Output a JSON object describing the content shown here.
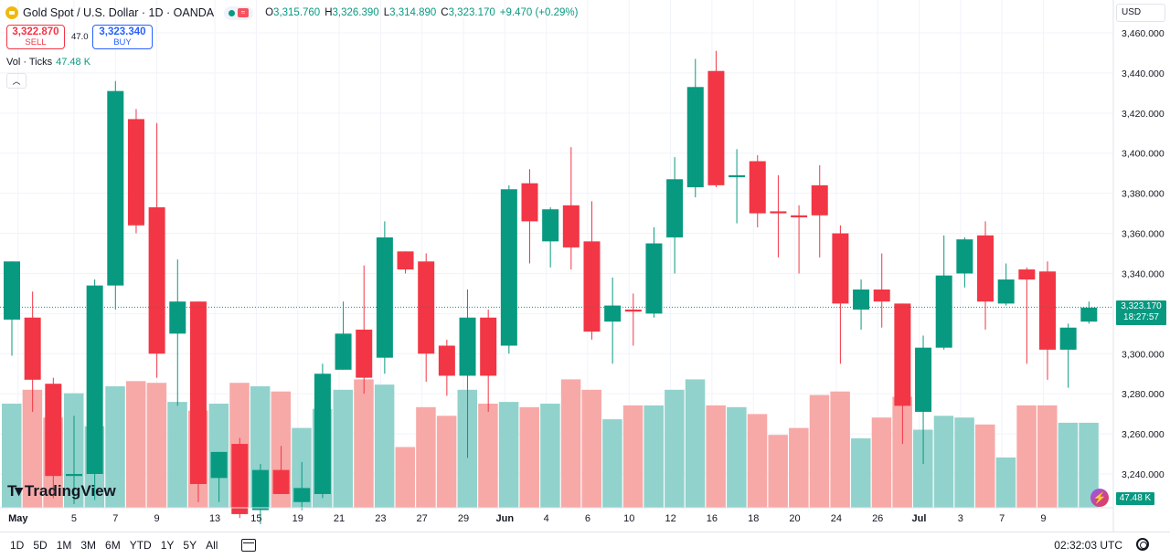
{
  "header": {
    "symbol_title": "Gold Spot / U.S. Dollar · 1D · OANDA",
    "ohlc": [
      {
        "key": "O",
        "value": "3,315.760"
      },
      {
        "key": "H",
        "value": "3,326.390"
      },
      {
        "key": "L",
        "value": "3,314.890"
      },
      {
        "key": "C",
        "value": "3,323.170"
      },
      {
        "key": "",
        "value": "+9.470 (+0.29%)"
      }
    ]
  },
  "trade": {
    "sell_price": "3,322.870",
    "sell_label": "SELL",
    "spread": "47.0",
    "buy_price": "3,323.340",
    "buy_label": "BUY"
  },
  "volume_legend": {
    "label": "Vol · Ticks",
    "value": "47.48 K"
  },
  "currency": "USD",
  "last_price": {
    "price": "3,323.170",
    "countdown": "18:27:57"
  },
  "last_volume": "47.48 K",
  "logo_text": "TradingView",
  "ranges": [
    "1D",
    "5D",
    "1M",
    "3M",
    "6M",
    "YTD",
    "1Y",
    "5Y",
    "All"
  ],
  "clock": "02:32:03 UTC",
  "colors": {
    "up": "#089981",
    "down": "#f23645",
    "up_vol": "#92d2cc",
    "down_vol": "#f7a9a7"
  },
  "chart_data": {
    "type": "candlestick",
    "y_ticks": [
      "3,460.000",
      "3,440.000",
      "3,420.000",
      "3,400.000",
      "3,380.000",
      "3,360.000",
      "3,340.000",
      "3,320.000",
      "3,300.000",
      "3,280.000",
      "3,260.000",
      "3,240.000"
    ],
    "ylim": [
      3225,
      3464
    ],
    "x_labels": [
      "May",
      "5",
      "7",
      "9",
      "13",
      "15",
      "19",
      "21",
      "23",
      "27",
      "29",
      "Jun",
      "4",
      "6",
      "10",
      "12",
      "16",
      "18",
      "20",
      "24",
      "26",
      "Jul",
      "3",
      "7",
      "9"
    ],
    "x_label_bars": [
      0.3,
      3,
      5,
      7,
      9.8,
      11.8,
      13.8,
      15.8,
      17.8,
      19.8,
      21.8,
      23.8,
      25.8,
      27.8,
      29.8,
      31.8,
      33.8,
      35.8,
      37.8,
      39.8,
      41.8,
      43.8,
      45.8,
      47.8,
      49.8
    ],
    "candles": [
      {
        "o": 3317,
        "h": 3346,
        "l": 3299,
        "c": 3346
      },
      {
        "o": 3318,
        "h": 3331,
        "l": 3271,
        "c": 3287
      },
      {
        "o": 3285,
        "h": 3288,
        "l": 3228,
        "c": 3239
      },
      {
        "o": 3239,
        "h": 3269,
        "l": 3225,
        "c": 3240
      },
      {
        "o": 3240,
        "h": 3337,
        "l": 3227,
        "c": 3334
      },
      {
        "o": 3334,
        "h": 3436,
        "l": 3322,
        "c": 3431
      },
      {
        "o": 3417,
        "h": 3422,
        "l": 3360,
        "c": 3364
      },
      {
        "o": 3373,
        "h": 3415,
        "l": 3288,
        "c": 3300
      },
      {
        "o": 3310,
        "h": 3347,
        "l": 3274,
        "c": 3326
      },
      {
        "o": 3326,
        "h": 3326,
        "l": 3226,
        "c": 3235
      },
      {
        "o": 3238,
        "h": 3251,
        "l": 3226,
        "c": 3251
      },
      {
        "o": 3255,
        "h": 3258,
        "l": 3218,
        "c": 3220
      },
      {
        "o": 3222,
        "h": 3245,
        "l": 3215,
        "c": 3242
      },
      {
        "o": 3242,
        "h": 3254,
        "l": 3232,
        "c": 3230
      },
      {
        "o": 3226,
        "h": 3246,
        "l": 3222,
        "c": 3233
      },
      {
        "o": 3230,
        "h": 3295,
        "l": 3228,
        "c": 3290
      },
      {
        "o": 3292,
        "h": 3326,
        "l": 3292,
        "c": 3310
      },
      {
        "o": 3312,
        "h": 3344,
        "l": 3280,
        "c": 3288
      },
      {
        "o": 3298,
        "h": 3366,
        "l": 3290,
        "c": 3358
      },
      {
        "o": 3351,
        "h": 3351,
        "l": 3340,
        "c": 3342
      },
      {
        "o": 3346,
        "h": 3350,
        "l": 3286,
        "c": 3300
      },
      {
        "o": 3304,
        "h": 3307,
        "l": 3279,
        "c": 3289
      },
      {
        "o": 3289,
        "h": 3332,
        "l": 3248,
        "c": 3318
      },
      {
        "o": 3318,
        "h": 3322,
        "l": 3271,
        "c": 3289
      },
      {
        "o": 3304,
        "h": 3384,
        "l": 3300,
        "c": 3382
      },
      {
        "o": 3385,
        "h": 3392,
        "l": 3345,
        "c": 3366
      },
      {
        "o": 3356,
        "h": 3373,
        "l": 3343,
        "c": 3372
      },
      {
        "o": 3374,
        "h": 3403,
        "l": 3342,
        "c": 3353
      },
      {
        "o": 3356,
        "h": 3376,
        "l": 3307,
        "c": 3311
      },
      {
        "o": 3316,
        "h": 3338,
        "l": 3295,
        "c": 3324
      },
      {
        "o": 3322,
        "h": 3330,
        "l": 3304,
        "c": 3321
      },
      {
        "o": 3320,
        "h": 3363,
        "l": 3318,
        "c": 3355
      },
      {
        "o": 3358,
        "h": 3398,
        "l": 3340,
        "c": 3387
      },
      {
        "o": 3383,
        "h": 3447,
        "l": 3378,
        "c": 3433
      },
      {
        "o": 3441,
        "h": 3451,
        "l": 3383,
        "c": 3384
      },
      {
        "o": 3388,
        "h": 3402,
        "l": 3365,
        "c": 3389
      },
      {
        "o": 3396,
        "h": 3399,
        "l": 3363,
        "c": 3370
      },
      {
        "o": 3371,
        "h": 3389,
        "l": 3348,
        "c": 3370
      },
      {
        "o": 3369,
        "h": 3374,
        "l": 3340,
        "c": 3368
      },
      {
        "o": 3384,
        "h": 3394,
        "l": 3348,
        "c": 3369
      },
      {
        "o": 3360,
        "h": 3364,
        "l": 3295,
        "c": 3325
      },
      {
        "o": 3322,
        "h": 3337,
        "l": 3312,
        "c": 3332
      },
      {
        "o": 3332,
        "h": 3350,
        "l": 3313,
        "c": 3326
      },
      {
        "o": 3325,
        "h": 3325,
        "l": 3255,
        "c": 3274
      },
      {
        "o": 3271,
        "h": 3309,
        "l": 3245,
        "c": 3303
      },
      {
        "o": 3303,
        "h": 3359,
        "l": 3302,
        "c": 3339
      },
      {
        "o": 3340,
        "h": 3358,
        "l": 3333,
        "c": 3357
      },
      {
        "o": 3359,
        "h": 3366,
        "l": 3312,
        "c": 3326
      },
      {
        "o": 3325,
        "h": 3345,
        "l": 3324,
        "c": 3337
      },
      {
        "o": 3342,
        "h": 3343,
        "l": 3295,
        "c": 3337
      },
      {
        "o": 3341,
        "h": 3346,
        "l": 3287,
        "c": 3302
      },
      {
        "o": 3302,
        "h": 3315,
        "l": 3283,
        "c": 3313
      },
      {
        "o": 3316,
        "h": 3326,
        "l": 3315,
        "c": 3323
      }
    ],
    "volume_levels": [
      0.6,
      0.68,
      0.52,
      0.66,
      0.47,
      0.7,
      0.73,
      0.72,
      0.61,
      0.56,
      0.6,
      0.72,
      0.7,
      0.67,
      0.46,
      0.57,
      0.68,
      0.74,
      0.71,
      0.35,
      0.58,
      0.53,
      0.68,
      0.6,
      0.61,
      0.58,
      0.6,
      0.74,
      0.68,
      0.51,
      0.59,
      0.59,
      0.68,
      0.74,
      0.59,
      0.58,
      0.54,
      0.42,
      0.46,
      0.65,
      0.67,
      0.4,
      0.52,
      0.64,
      0.45,
      0.53,
      0.52,
      0.48,
      0.29,
      0.59,
      0.59,
      0.49,
      0.49
    ]
  }
}
